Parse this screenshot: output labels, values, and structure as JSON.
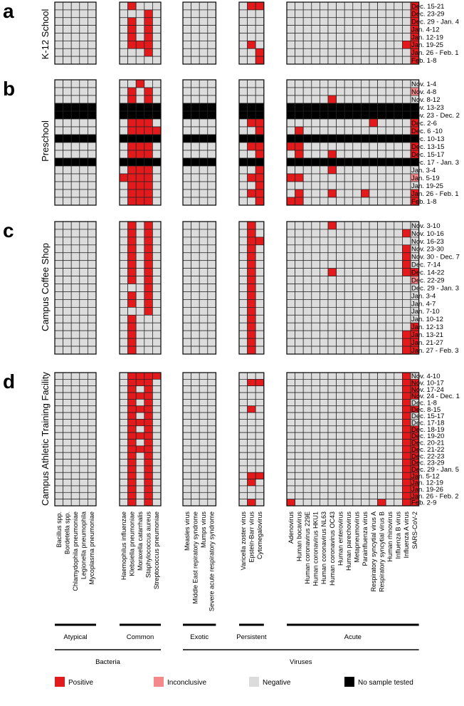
{
  "chart_data": {
    "type": "heatmap",
    "legend": [
      {
        "key": "P",
        "label": "Positive",
        "color": "#e31a1c"
      },
      {
        "key": "I",
        "label": "Inconclusive",
        "color": "#f4898b"
      },
      {
        "key": "N",
        "label": "Negative",
        "color": "#dcdcdc"
      },
      {
        "key": "X",
        "label": "No sample tested",
        "color": "#000000"
      }
    ],
    "column_groups": [
      {
        "name": "Atypical",
        "parent": "Bacteria",
        "columns": [
          "Bacillus spp.",
          "Bordetella spp.",
          "Chlamydophila pneumoniae",
          "Legionella pneumophila",
          "Mycoplasma pneumoniae"
        ]
      },
      {
        "name": "Common",
        "parent": "Bacteria",
        "columns": [
          "Haemophilus influenzae",
          "Klebsiella pneumoniae",
          "Moraxella catarrhalis",
          "Staphylococcus aureus",
          "Streptococcus pneumoniae"
        ]
      },
      {
        "name": "Exotic",
        "parent": "Viruses",
        "columns": [
          "Measles virus",
          "Middle East repiratory syndrome",
          "Mumps virus",
          "Severe acute respiratory syndrome"
        ]
      },
      {
        "name": "Persistent",
        "parent": "Viruses",
        "columns": [
          "Varicella zoster virus",
          "Epstein-Barr virus",
          "Cytomegalovirus"
        ]
      },
      {
        "name": "Acute",
        "parent": "Viruses",
        "columns": [
          "Adenovirus",
          "Human bocavirus",
          "Human coronavirus 229E",
          "Human coronavirus HKU1",
          "Human coronavirus NL63",
          "Human coronavirus OC43",
          "Human enterovirus",
          "Human parechovirus",
          "Metapneumovirus",
          "Parainfluenza virus",
          "Respiratory syncytial virus A",
          "Respiratory syncytial virus B",
          "Human rhinovirus",
          "Influenza B virus",
          "Influenza A virus",
          "SARS-CoV-2"
        ]
      }
    ],
    "parents": [
      "Bacteria",
      "Viruses"
    ],
    "panels": [
      {
        "letter": "a",
        "title": "K-12 School",
        "rows": [
          {
            "date": "Dec. 15-21",
            "cells": "NNNNN NPNNN NNNN NPP NNNNNNNNNNNNNNNP"
          },
          {
            "date": "Dec. 23-29",
            "cells": "NNNNN NNNPN NNNN NNN NNNNNNNNNNNNNNNP"
          },
          {
            "date": "Dec. 29 - Jan. 4",
            "cells": "NNNNN NPNPN NNNN NNN NNNNNNNNNNNNNNNP"
          },
          {
            "date": "Jan. 4-12",
            "cells": "NNNNN NPNPN NNNN NNN NNNNNNNNNNNNNNNP"
          },
          {
            "date": "Jan. 12-19",
            "cells": "NNNNN NPNPN NNNN NNN NNNNNNNNNNNNNNNP"
          },
          {
            "date": "Jan. 19-25",
            "cells": "NNNNN NPPPN NNNN NPN NNNNNNNNNNNNNNPP"
          },
          {
            "date": "Jan. 26 - Feb. 1",
            "cells": "NNNNN NNNPN NNNN NNP NNNNNNNNNNNNNNNP"
          },
          {
            "date": "Feb. 1-8",
            "cells": "NNNNN NNNNN NNNN NNP NNNNNNNNNNNNNNNP"
          }
        ]
      },
      {
        "letter": "b",
        "title": "Preschool",
        "rows": [
          {
            "date": "Nov. 1-4",
            "cells": "NNNNN NNPNN NNNN NNN NNNNNNNNNNNNNNNN"
          },
          {
            "date": "Nov. 4-8",
            "cells": "NNNNN NPNPN NNNN NNN NNNNNNNNNNNNNNNI"
          },
          {
            "date": "Nov. 8-12",
            "cells": "NNNNN NPNPN NNNN NNN NNNNNPNNNNNNNNNN"
          },
          {
            "date": "Nov. 13-23",
            "cells": "XXXXX XXXXX XXXX XXX XXXXXXXXXXXXXXXX"
          },
          {
            "date": "Nov. 23 - Dec. 2",
            "cells": "XXXXX XXXXX XXXX XXX XXXXXXXXXXXXXXXX"
          },
          {
            "date": "Dec. 2-6",
            "cells": "NNNNN NPPPN NNNN NPP NNNNNNNNNNPNNNNP"
          },
          {
            "date": "Dec. 6 -10",
            "cells": "NNNNN NPPPP NNNN NNP NPNNNNNNNNNNNNNP"
          },
          {
            "date": "Dec. 10-13",
            "cells": "XXXXX XXXXX XXXX XXX XXXXXXXXXXXXXXXX"
          },
          {
            "date": "Dec. 13-15",
            "cells": "NNNNN NPPPN NNNN NPP PPNNNNNNNNNNNNNP"
          },
          {
            "date": "Dec. 15-17",
            "cells": "NNNNN NPPPN NNNN NNP NPNNNPNNNNNNNNNP"
          },
          {
            "date": "Dec. 17 - Jan. 3",
            "cells": "XXXXX XXXXX XXXX XXX XXXXXXXXXXXXXXXX"
          },
          {
            "date": "Jan. 3-4",
            "cells": "NNNNN NPPPN NNNN NNP NNNNNPNNNNNNNNNN"
          },
          {
            "date": "Jan. 5-19",
            "cells": "NNNNN PPPPN NNNN NPP PPNNNNNNNNNNNNNI"
          },
          {
            "date": "Jan. 19-25",
            "cells": "NNNNN NPPPN NNNN NNP NNNNNNNNNNNNNNNN"
          },
          {
            "date": "Jan. 26 - Feb. 1",
            "cells": "NNNNN NPPPN NNNN NPP NPNNNPNNNPNNNNNP"
          },
          {
            "date": "Feb. 1-8",
            "cells": "NNNNN NPPPN NNNN NNP PPNNNNNNNNNNNNNP"
          }
        ]
      },
      {
        "letter": "c",
        "title": "Campus Coffee Shop",
        "rows": [
          {
            "date": "Nov. 3-10",
            "cells": "NNNNN NPNPN NNNN NPN NNNNNPNNNNNNNNNN"
          },
          {
            "date": "Nov. 10-16",
            "cells": "NNNNN NPNPN NNNN NPN NNNNNNNNNNNNNNPN"
          },
          {
            "date": "Nov. 16-23",
            "cells": "NNNNN NPNPN NNNN NPP NNNNNNNNNNNNNNNN"
          },
          {
            "date": "Nov. 23-30",
            "cells": "NNNNN NPNPN NNNN NPN NNNNNNNNNNNNNNPN"
          },
          {
            "date": "Nov. 30 - Dec. 7",
            "cells": "NNNNN NPNPN NNNN NPN NNNNNNNNNNNNNNPN"
          },
          {
            "date": "Dec. 7-14",
            "cells": "NNNNN NPNPN NNNN NPN NNNNNNNNNNNNNNPN"
          },
          {
            "date": "Dec. 14-22",
            "cells": "NNNNN NPNPN NNNN NPN NNNNNPNNNNNNNNPP"
          },
          {
            "date": "Dec. 22-29",
            "cells": "NNNNN NPNPN NNNN NPN NNNNNNNNNNNNNNNI"
          },
          {
            "date": "Dec. 29 - Jan. 3",
            "cells": "NNNNN NNNPN NNNN NPN NNNNNNNNNNNNNNNN"
          },
          {
            "date": "Jan. 3-4",
            "cells": "NNNNN NPNPN NNNN NPN NNNNNNNNNNNNNNNN"
          },
          {
            "date": "Jan. 4-7",
            "cells": "NNNNN NPNPN NNNN NPN NNNNNNNNNNNNNNNN"
          },
          {
            "date": "Jan. 7-10",
            "cells": "NNNNN NNNPN NNNN NPN NNNNNNNNNNNNNNNN"
          },
          {
            "date": "Jan. 10-12",
            "cells": "NNNNN NPNNN NNNN NPN NNNNNNNNNNNNNNNN"
          },
          {
            "date": "Jan. 12-13",
            "cells": "NNNNN NPNNN NNNN NPN NNNNNNNNNNNNNNNP"
          },
          {
            "date": "Jan. 13-21",
            "cells": "NNNNN NPNNN NNNN NPN NNNNNNNNNNNNNNPP"
          },
          {
            "date": "Jan. 21-27",
            "cells": "NNNNN NPNNN NNNN NPN NNNNNNNNNNNNNNPP"
          },
          {
            "date": "Jan. 27 - Feb. 3",
            "cells": "NNNNN NPNNN NNNN NPN NNNNNNNNNNNNNNPP"
          }
        ]
      },
      {
        "letter": "d",
        "title": "Campus Athletic Training Facility",
        "rows": [
          {
            "date": "Nov. 4-10",
            "cells": "NNNNN NPPPP NNNN NNN NNNNNNNNNNNNNNPN"
          },
          {
            "date": "Nov. 10-17",
            "cells": "NNNNN NPPPN NNNN NPP NNNNNNNNNNNNNNPP"
          },
          {
            "date": "Nov. 17-24",
            "cells": "NNNNN NPNPN NNNN NNN NNNNNNNNNNNNNNPP"
          },
          {
            "date": "Nov. 24 - Dec. 1",
            "cells": "NNNNN NPPPN NNNN NNN NNNNNNNNNNNNNNPP"
          },
          {
            "date": "Dec. 1-8",
            "cells": "NNNNN NPNPN NNNN NNN NNNNNNNNNNNNNNPN"
          },
          {
            "date": "Dec. 8-15",
            "cells": "NNNNN NPPPN NNNN NPN NNNNNNNNNNNNNNPP"
          },
          {
            "date": "Dec. 15-17",
            "cells": "NNNNN NPNPN NNNN NNN NNNNNNNNNNNNNNPN"
          },
          {
            "date": "Dec. 17-18",
            "cells": "NNNNN NPPPN NNNN NNN NNNNNNNNNNNNNNPN"
          },
          {
            "date": "Dec. 18-19",
            "cells": "NNNNN NPNPN NNNN NNN NNNNNNNNNNNNNNPP"
          },
          {
            "date": "Dec. 19-20",
            "cells": "NNNNN NPPPN NNNN NNN NNNNNNNNNNNNNNPP"
          },
          {
            "date": "Dec. 20-21",
            "cells": "NNNNN NPNPN NNNN NNN NNNNNNNNNNNNNNPP"
          },
          {
            "date": "Dec. 21-22",
            "cells": "NNNNN NPPPN NNNN NNN NNNNNNNNNNNNNNPP"
          },
          {
            "date": "Dec. 22-23",
            "cells": "NNNNN NPNPN NNNN NNN NNNNNNNNNNNNNNPP"
          },
          {
            "date": "Dec. 23-29",
            "cells": "NNNNN NPNPN NNNN NNN NNNNNNNNNNNNNNPP"
          },
          {
            "date": "Dec. 29 - Jan. 5",
            "cells": "NNNNN NPNPN NNNN NNN NNNNNNNNNNNNNNPP"
          },
          {
            "date": "Jan. 5-12",
            "cells": "NNNNN NPNPN NNNN NPP NNNNNNNNNNNNNNPP"
          },
          {
            "date": "Jan. 12-19",
            "cells": "NNNNN NPNPN NNNN NPN NNNNNNNNNNNNNNPP"
          },
          {
            "date": "Jan. 19-26",
            "cells": "NNNNN NPNPN NNNN NNN NNNNNNNNNNNNNNPP"
          },
          {
            "date": "Jan. 26 - Feb. 2",
            "cells": "NNNNN NPNPN NNNN NNN NNNNNNNNNNNNNNPP"
          },
          {
            "date": "Feb. 2-9",
            "cells": "NNNNN NPNPN NNNN NPN PNNNNNNNNNNPNNPP"
          }
        ]
      }
    ]
  }
}
